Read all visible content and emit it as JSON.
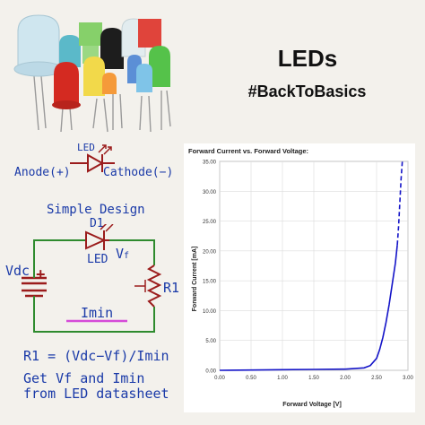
{
  "title": "LEDs",
  "hashtag": "#BackToBasics",
  "symbol_diagram": {
    "led_label": "LED",
    "anode_label": "Anode(+)",
    "cathode_label": "Cathode(−)"
  },
  "circuit": {
    "heading": "Simple Design",
    "diode_ref": "D1",
    "diode_name": "LED",
    "vf_label_main": "V",
    "vf_label_sub": "f",
    "vdc_label": "Vdc",
    "plus_sign": "+",
    "resistor_label": "R1",
    "current_label": "Imin"
  },
  "formula": "R1 = (Vdc−Vf)/Imin",
  "note_line1": "Get Vf and Imin",
  "note_line2": "from LED datasheet",
  "colors": {
    "ink_blue": "#1a3aa8",
    "circuit_red": "#9b1c1c",
    "wire_green": "#2e8b2e",
    "highlight_magenta": "#d54bd8",
    "curve_blue": "#1414c8"
  },
  "chart_data": {
    "type": "line",
    "title": "Forward Current vs. Forward Voltage:",
    "xlabel": "Forward Voltage [V]",
    "ylabel": "Forward Current [mA]",
    "xlim": [
      0,
      3.0
    ],
    "ylim": [
      0,
      35
    ],
    "xticks": [
      "0.00",
      "0.50",
      "1.00",
      "1.50",
      "2.00",
      "2.50",
      "3.00"
    ],
    "yticks": [
      "0.00",
      "5.00",
      "10.00",
      "15.00",
      "20.00",
      "25.00",
      "30.00",
      "35.00"
    ],
    "grid": true,
    "series": [
      {
        "style": "solid",
        "x": [
          0,
          0.5,
          1.0,
          1.5,
          2.0,
          2.3,
          2.4,
          2.5,
          2.55,
          2.6,
          2.65,
          2.7,
          2.75,
          2.8,
          2.83
        ],
        "y": [
          0,
          0.05,
          0.1,
          0.15,
          0.2,
          0.4,
          0.8,
          2.0,
          3.5,
          5.5,
          8.0,
          11.0,
          14.5,
          18.0,
          21.0
        ]
      },
      {
        "style": "dashed",
        "x": [
          2.83,
          2.85,
          2.87,
          2.89,
          2.91
        ],
        "y": [
          21.0,
          24.0,
          28.0,
          32.0,
          35.0
        ]
      }
    ]
  }
}
